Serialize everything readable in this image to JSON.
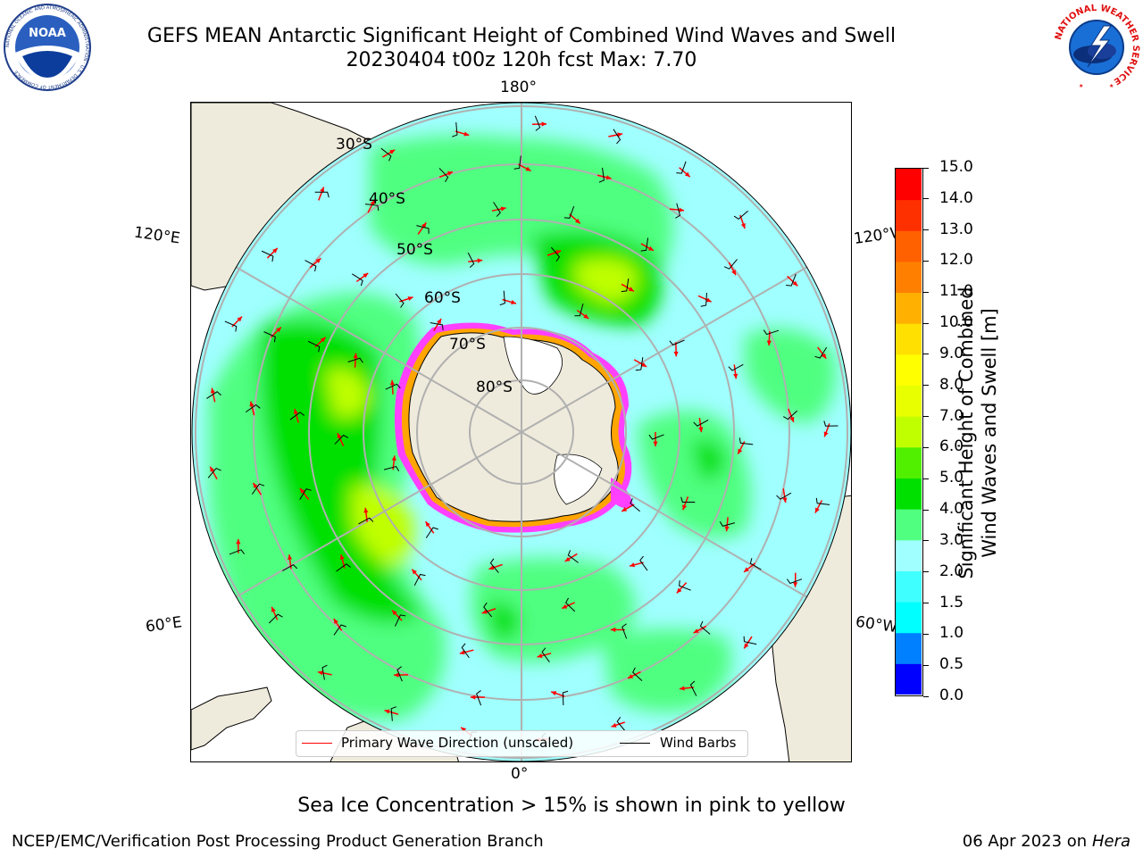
{
  "header": {
    "title_line1": "GEFS MEAN Antarctic Significant Height of Combined Wind Waves and Swell",
    "title_line2": "20230404 t00z 120h fcst   Max: 7.70"
  },
  "logos": {
    "noaa_text": "NOAA",
    "noaa_ring_text": "NATIONAL OCEANIC AND ATMOSPHERIC ADMINISTRATION · U.S. DEPARTMENT OF COMMERCE",
    "nws_ring_text": "NATIONAL WEATHER SERVICE"
  },
  "map": {
    "projection": "south polar stereographic",
    "lon_labels": {
      "top": "180°",
      "bottom": "0°",
      "upper_left": "120°E",
      "upper_right": "120°W",
      "lower_left": "60°E",
      "lower_right": "60°W"
    },
    "lat_labels": [
      "30°S",
      "40°S",
      "50°S",
      "60°S",
      "70°S",
      "80°S"
    ],
    "sea_ice_colors": [
      "#ff40ff",
      "#ffa500",
      "#ffff00"
    ],
    "land_color": "#efebdc",
    "max_wave_height_m": 7.7
  },
  "colorbar": {
    "label_line1": "Significant Height of Combined",
    "label_line2": "Wind Waves and Swell [m]",
    "ticks": [
      "0.0",
      "0.5",
      "1.0",
      "1.5",
      "2.0",
      "3.0",
      "4.0",
      "5.0",
      "6.0",
      "7.0",
      "8.0",
      "9.0",
      "10.0",
      "11.0",
      "12.0",
      "13.0",
      "14.0",
      "15.0"
    ],
    "colors": [
      "#0000ff",
      "#0080ff",
      "#00ffff",
      "#40ffff",
      "#a0ffff",
      "#50ff80",
      "#00e000",
      "#50f000",
      "#c0ff00",
      "#e8ff00",
      "#ffff00",
      "#ffe000",
      "#ffb000",
      "#ff8000",
      "#ff6000",
      "#ff3000",
      "#ff0000"
    ]
  },
  "legend": {
    "primary_wave_label": "Primary Wave Direction (unscaled)",
    "primary_wave_color": "#ff0000",
    "wind_barbs_label": "Wind Barbs",
    "wind_barbs_color": "#000000"
  },
  "notes": {
    "sea_ice": "Sea Ice Concentration > 15% is shown in pink to yellow"
  },
  "footer": {
    "left": "NCEP/EMC/Verification Post Processing Product Generation Branch",
    "date": "06 Apr 2023 on ",
    "machine": "Hera"
  }
}
